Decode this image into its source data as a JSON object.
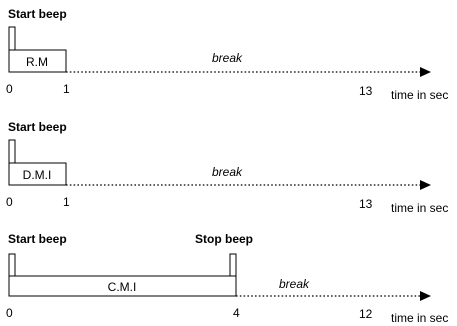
{
  "timelines": [
    {
      "start_label": "Start beep",
      "stop_label": "",
      "box_label": "R.M",
      "break_label": "break",
      "ticks": [
        "0",
        "1",
        "13"
      ],
      "axis_label": "time in sec"
    },
    {
      "start_label": "Start beep",
      "stop_label": "",
      "box_label": "D.M.I",
      "break_label": "break",
      "ticks": [
        "0",
        "1",
        "13"
      ],
      "axis_label": "time in sec"
    },
    {
      "start_label": "Start beep",
      "stop_label": "Stop beep",
      "box_label": "C.M.I",
      "break_label": "break",
      "ticks": [
        "0",
        "4",
        "12"
      ],
      "axis_label": "time in sec"
    }
  ]
}
